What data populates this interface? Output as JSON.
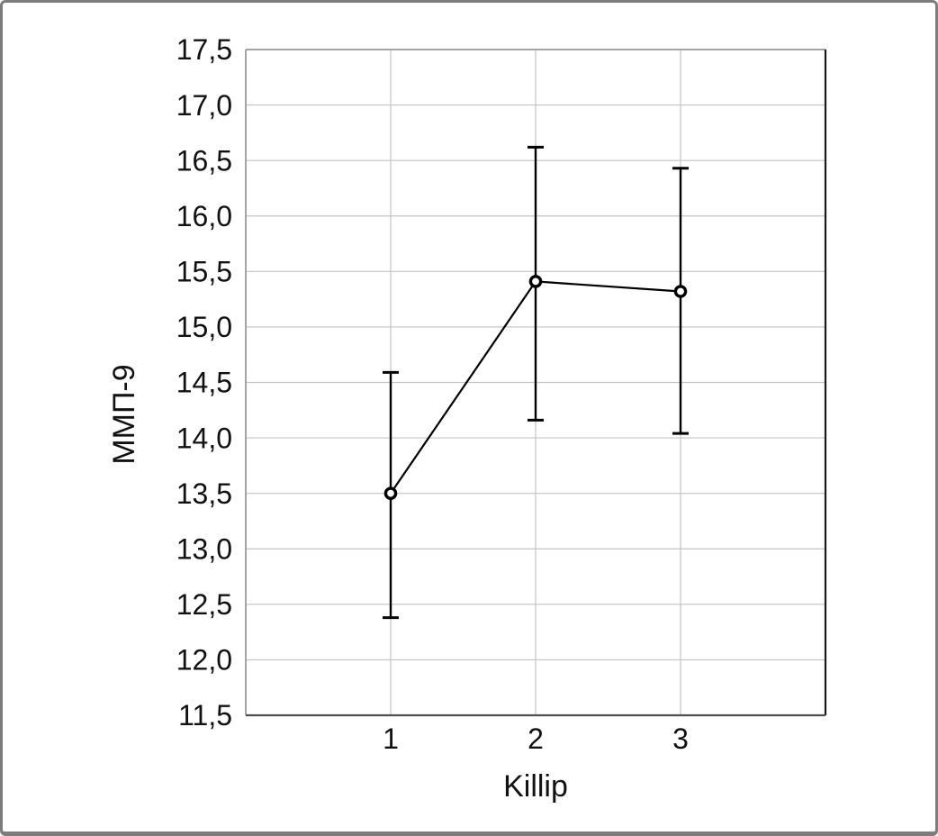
{
  "figure": {
    "background": "#ffffff",
    "frame_color": "#7d7d7d"
  },
  "chart_data": {
    "type": "line",
    "title": "",
    "xlabel": "Killip",
    "ylabel": "ММП-9",
    "categories": [
      "1",
      "2",
      "3"
    ],
    "series": [
      {
        "name": "ММП-9",
        "values": [
          13.5,
          15.41,
          15.32
        ],
        "ci_low": [
          12.38,
          14.16,
          14.04
        ],
        "ci_high": [
          14.59,
          16.62,
          16.43
        ]
      }
    ],
    "ylim": [
      11.5,
      17.5
    ],
    "ytick_step": 0.5,
    "ytick_labels": [
      "11,5",
      "12,0",
      "12,5",
      "13,0",
      "13,5",
      "14,0",
      "14,5",
      "15,0",
      "15,5",
      "16,0",
      "16,5",
      "17,0",
      "17,5"
    ],
    "decimal_separator": ",",
    "grid": true,
    "legend_position": "none",
    "marker": "open-circle",
    "line_color": "#000000",
    "grid_color": "#c3c3c3",
    "text_color": "#111111"
  }
}
